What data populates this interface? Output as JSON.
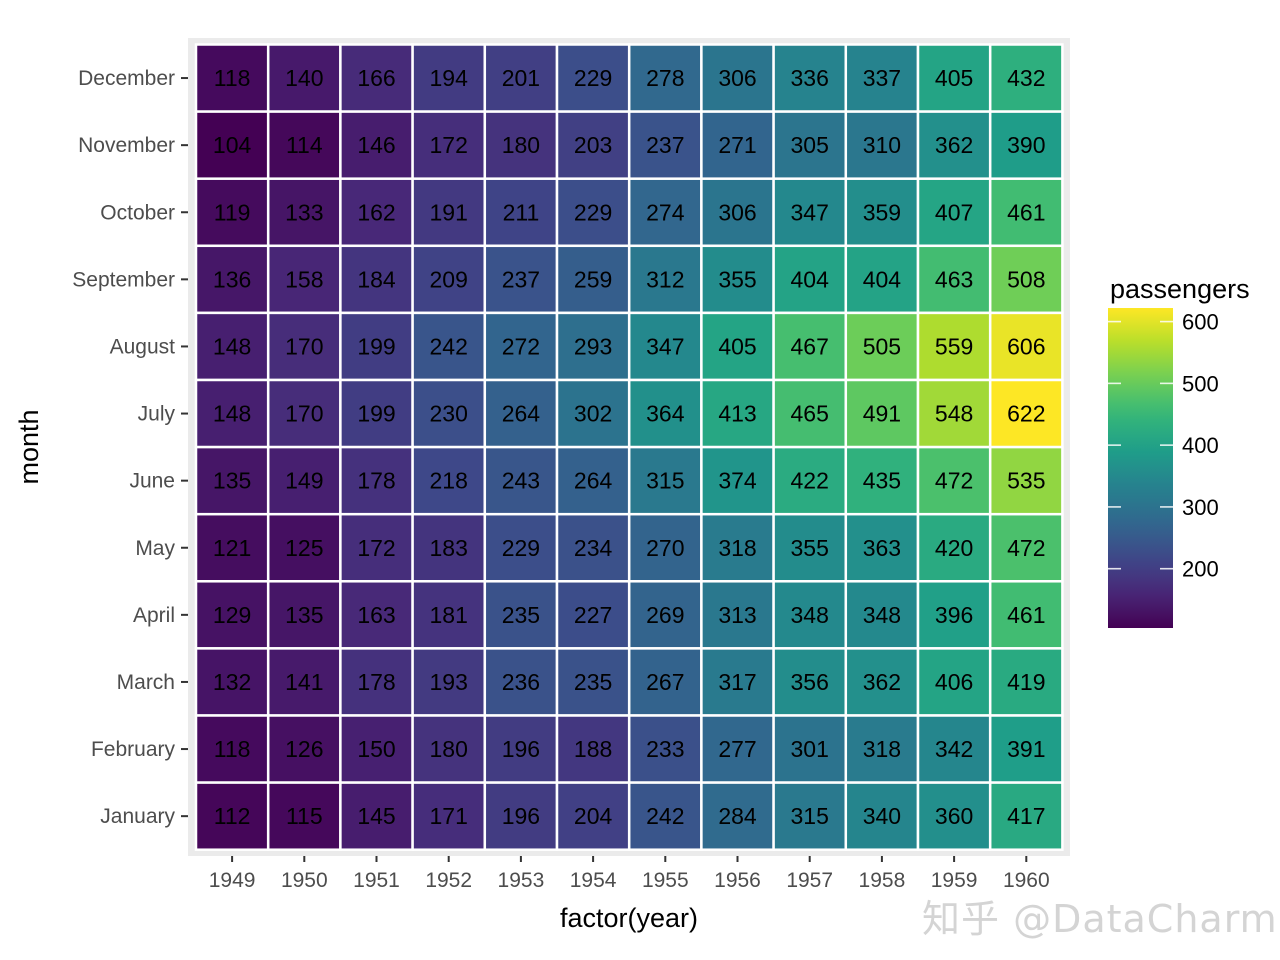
{
  "chart_data": {
    "type": "heatmap",
    "xlabel": "factor(year)",
    "ylabel": "month",
    "x": [
      "1949",
      "1950",
      "1951",
      "1952",
      "1953",
      "1954",
      "1955",
      "1956",
      "1957",
      "1958",
      "1959",
      "1960"
    ],
    "y": [
      "January",
      "February",
      "March",
      "April",
      "May",
      "June",
      "July",
      "August",
      "September",
      "October",
      "November",
      "December"
    ],
    "values": [
      [
        112,
        115,
        145,
        171,
        196,
        204,
        242,
        284,
        315,
        340,
        360,
        417
      ],
      [
        118,
        126,
        150,
        180,
        196,
        188,
        233,
        277,
        301,
        318,
        342,
        391
      ],
      [
        132,
        141,
        178,
        193,
        236,
        235,
        267,
        317,
        356,
        362,
        406,
        419
      ],
      [
        129,
        135,
        163,
        181,
        235,
        227,
        269,
        313,
        348,
        348,
        396,
        461
      ],
      [
        121,
        125,
        172,
        183,
        229,
        234,
        270,
        318,
        355,
        363,
        420,
        472
      ],
      [
        135,
        149,
        178,
        218,
        243,
        264,
        315,
        374,
        422,
        435,
        472,
        535
      ],
      [
        148,
        170,
        199,
        230,
        264,
        302,
        364,
        413,
        465,
        491,
        548,
        622
      ],
      [
        148,
        170,
        199,
        242,
        272,
        293,
        347,
        405,
        467,
        505,
        559,
        606
      ],
      [
        136,
        158,
        184,
        209,
        237,
        259,
        312,
        355,
        404,
        404,
        463,
        508
      ],
      [
        119,
        133,
        162,
        191,
        211,
        229,
        274,
        306,
        347,
        359,
        407,
        461
      ],
      [
        104,
        114,
        146,
        172,
        180,
        203,
        237,
        271,
        305,
        310,
        362,
        390
      ],
      [
        118,
        140,
        166,
        194,
        201,
        229,
        278,
        306,
        336,
        337,
        405,
        432
      ]
    ],
    "legend": {
      "title": "passengers",
      "ticks": [
        200,
        300,
        400,
        500,
        600
      ],
      "min": 104,
      "max": 622,
      "colormap": "viridis"
    },
    "grid": true
  },
  "watermark": "知乎 @DataCharm"
}
